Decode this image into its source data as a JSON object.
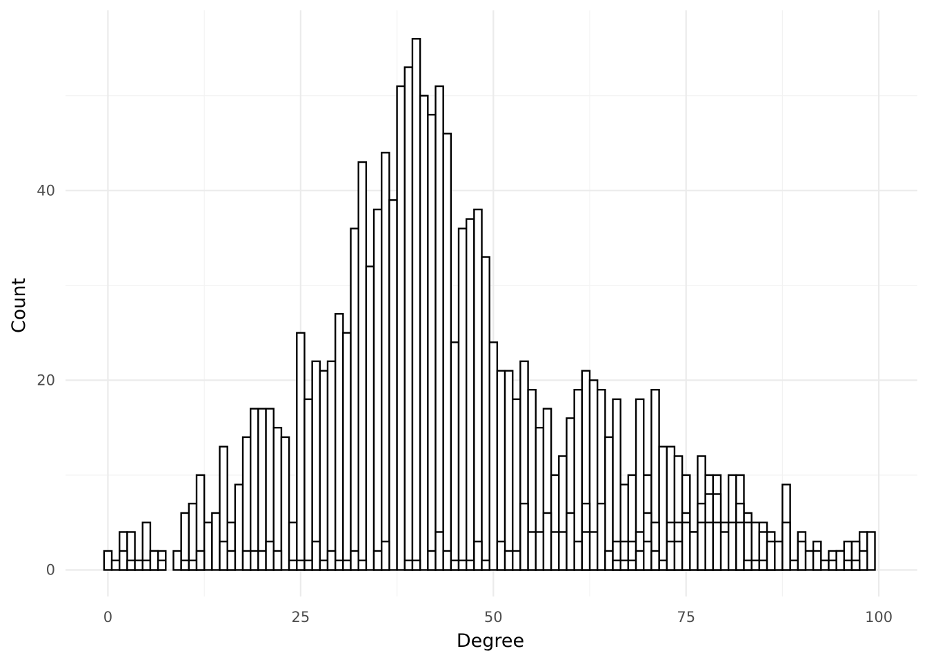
{
  "chart_data": {
    "type": "bar",
    "subtype": "histogram",
    "title": "",
    "xlabel": "Degree",
    "ylabel": "Count",
    "xlim": [
      -5.5,
      105
    ],
    "ylim": [
      -2.8,
      59
    ],
    "x_ticks": [
      0,
      25,
      50,
      75,
      100
    ],
    "y_ticks": [
      0,
      20,
      40
    ],
    "x_tick_labels": [
      "0",
      "25",
      "50",
      "75",
      "100"
    ],
    "y_tick_labels": [
      "0",
      "20",
      "40"
    ],
    "grid": true,
    "bar_fill": "#ffffff",
    "bar_stroke": "#000000",
    "bins": {
      "x": [
        0,
        1,
        2,
        3,
        4,
        5,
        6,
        7,
        8,
        9,
        10,
        11,
        12,
        13,
        14,
        15,
        16,
        17,
        18,
        19,
        20,
        21,
        22,
        23,
        24,
        25,
        26,
        27,
        28,
        29,
        30,
        31,
        32,
        33,
        34,
        35,
        36,
        37,
        38,
        39,
        40,
        41,
        42,
        43,
        44,
        45,
        46,
        47,
        48,
        49,
        50,
        51,
        52,
        53,
        54,
        55,
        56,
        57,
        58,
        59,
        60,
        61,
        62,
        63,
        64,
        65,
        66,
        67,
        68,
        69,
        70,
        71,
        72,
        73,
        74,
        75,
        76,
        77,
        78,
        79,
        80,
        81,
        82,
        83,
        84,
        85,
        86,
        87,
        88,
        89,
        90,
        91,
        92,
        93,
        94,
        95,
        96,
        97,
        98,
        99
      ],
      "series": [
        {
          "values": [
            2,
            1,
            4,
            4,
            1,
            5,
            2,
            2,
            0,
            2,
            6,
            7,
            10,
            5,
            6,
            13,
            5,
            9,
            14,
            17,
            17,
            17,
            15,
            14,
            5,
            25,
            18,
            22,
            21,
            22,
            27,
            25,
            36,
            43,
            32,
            38,
            44,
            39,
            51,
            53,
            56,
            50,
            48,
            51,
            46,
            24,
            36,
            37,
            38,
            33,
            24,
            21,
            21,
            18,
            22,
            19,
            15,
            17,
            10,
            12,
            16,
            19,
            21,
            20,
            19,
            14,
            18,
            9,
            10,
            18,
            10,
            19,
            13,
            13,
            12,
            10,
            4,
            12,
            10,
            10,
            5,
            10,
            10,
            6,
            5,
            5,
            4,
            3,
            9,
            1,
            4,
            2,
            3,
            1,
            2,
            2,
            3,
            3,
            4,
            4
          ]
        },
        {
          "values": [
            0,
            0,
            2,
            1,
            1,
            1,
            2,
            1,
            0,
            0,
            1,
            1,
            2,
            0,
            0,
            3,
            2,
            0,
            2,
            2,
            2,
            3,
            2,
            0,
            1,
            1,
            1,
            3,
            1,
            2,
            1,
            1,
            2,
            1,
            0,
            2,
            3,
            0,
            0,
            1,
            1,
            0,
            2,
            4,
            2,
            1,
            1,
            1,
            3,
            1,
            0,
            3,
            2,
            2,
            7,
            4,
            4,
            6,
            4,
            4,
            6,
            3,
            7,
            4,
            7,
            2,
            3,
            3,
            3,
            4,
            6,
            5,
            1,
            5,
            5,
            6,
            4,
            7,
            8,
            8,
            4,
            5,
            7,
            5,
            1,
            4,
            1,
            3,
            5,
            0,
            3,
            0,
            2,
            0,
            1,
            2,
            1,
            3,
            2,
            0
          ]
        },
        {
          "values": [
            0,
            0,
            0,
            0,
            0,
            0,
            0,
            0,
            0,
            0,
            0,
            0,
            0,
            0,
            0,
            0,
            0,
            0,
            0,
            0,
            0,
            0,
            0,
            0,
            0,
            0,
            0,
            0,
            0,
            0,
            0,
            0,
            0,
            0,
            0,
            0,
            0,
            0,
            0,
            0,
            0,
            0,
            0,
            0,
            0,
            0,
            0,
            0,
            0,
            0,
            0,
            0,
            0,
            0,
            0,
            0,
            0,
            0,
            0,
            0,
            0,
            0,
            4,
            0,
            0,
            0,
            1,
            1,
            1,
            2,
            3,
            2,
            0,
            3,
            3,
            5,
            0,
            5,
            5,
            5,
            0,
            0,
            5,
            1,
            0,
            1,
            3,
            0,
            0,
            0,
            0,
            0,
            0,
            0,
            0,
            0,
            0,
            1,
            0,
            0
          ]
        }
      ]
    }
  }
}
